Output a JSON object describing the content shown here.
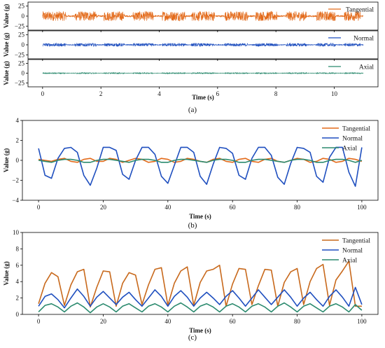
{
  "chart_data": [
    {
      "id": "a",
      "type": "line",
      "caption": "(a)",
      "xlabel": "Time (s)",
      "xlim": [
        -0.5,
        11.5
      ],
      "xticks": [
        0,
        2,
        4,
        6,
        8,
        10
      ],
      "subplots": [
        {
          "series_name": "Tangential",
          "ylabel": "Value (g)",
          "ylim": [
            -35,
            35
          ],
          "yticks": [
            -25,
            0,
            25
          ],
          "color": "#e36a1a",
          "bursts": [
            [
              0,
              0.8
            ],
            [
              1.1,
              1.85
            ],
            [
              2.1,
              2.8
            ],
            [
              3.1,
              3.8
            ],
            [
              4.1,
              4.9
            ],
            [
              5.1,
              5.9
            ],
            [
              6.25,
              7.05
            ],
            [
              7.3,
              8.05
            ],
            [
              8.35,
              9.05
            ],
            [
              9.4,
              10.05
            ],
            [
              10.35,
              10.9
            ]
          ],
          "burst_amplitude": 12,
          "quiet_amplitude": 2
        },
        {
          "series_name": "Normal",
          "ylabel": "Value (g)",
          "ylim": [
            -35,
            35
          ],
          "yticks": [
            -25,
            0,
            25
          ],
          "color": "#1f4fbf",
          "bursts": [
            [
              0,
              0.8
            ],
            [
              1.1,
              1.85
            ],
            [
              2.1,
              2.8
            ],
            [
              3.1,
              3.8
            ],
            [
              4.1,
              4.9
            ],
            [
              5.1,
              5.9
            ],
            [
              6.25,
              7.05
            ],
            [
              7.3,
              8.05
            ],
            [
              8.35,
              9.05
            ],
            [
              9.4,
              10.05
            ],
            [
              10.35,
              10.9
            ]
          ],
          "burst_amplitude": 4,
          "quiet_amplitude": 1
        },
        {
          "series_name": "Axial",
          "ylabel": "Value (g)",
          "ylim": [
            -35,
            35
          ],
          "yticks": [
            -25,
            0,
            25
          ],
          "color": "#2b8a6e",
          "bursts": [
            [
              0,
              0.8
            ],
            [
              1.1,
              1.85
            ],
            [
              2.1,
              2.8
            ],
            [
              3.1,
              3.8
            ],
            [
              4.1,
              4.9
            ],
            [
              5.1,
              5.9
            ],
            [
              6.25,
              7.05
            ],
            [
              7.3,
              8.05
            ],
            [
              8.35,
              9.05
            ],
            [
              9.4,
              10.05
            ],
            [
              10.35,
              10.9
            ]
          ],
          "burst_amplitude": 1.5,
          "quiet_amplitude": 0.6
        }
      ]
    },
    {
      "id": "b",
      "type": "line",
      "caption": "(b)",
      "xlabel": "Time (s)",
      "ylabel": "Value (g)",
      "xlim": [
        -5,
        105
      ],
      "ylim": [
        -4,
        4
      ],
      "xticks": [
        0,
        20,
        40,
        60,
        80,
        100
      ],
      "yticks": [
        -4,
        -2,
        0,
        2,
        4
      ],
      "legend_position": "top-right",
      "x": [
        0,
        2,
        4,
        6,
        8,
        10,
        12,
        14,
        16,
        18,
        20,
        22,
        24,
        26,
        28,
        30,
        32,
        34,
        36,
        38,
        40,
        42,
        44,
        46,
        48,
        50,
        52,
        54,
        56,
        58,
        60,
        62,
        64,
        66,
        68,
        70,
        72,
        74,
        76,
        78,
        80,
        82,
        84,
        86,
        88,
        90,
        92,
        94,
        96,
        98,
        100
      ],
      "series": [
        {
          "name": "Tangential",
          "color": "#e36a1a",
          "values": [
            0.1,
            0.0,
            -0.1,
            0.1,
            0.2,
            -0.1,
            -0.2,
            0.1,
            0.2,
            -0.1,
            -0.1,
            0.2,
            0.1,
            -0.2,
            0.0,
            0.2,
            0.1,
            -0.2,
            -0.1,
            0.2,
            0.1,
            -0.2,
            -0.1,
            0.2,
            0.1,
            -0.1,
            -0.2,
            0.1,
            0.2,
            -0.1,
            -0.2,
            0.1,
            0.2,
            -0.1,
            -0.2,
            0.1,
            0.2,
            -0.1,
            -0.2,
            0.0,
            0.2,
            0.1,
            -0.2,
            -0.1,
            0.2,
            0.1,
            -0.2,
            -0.1,
            0.2,
            0.1,
            -0.1
          ]
        },
        {
          "name": "Normal",
          "color": "#1f4fbf",
          "values": [
            1.2,
            -1.5,
            -1.8,
            0.2,
            1.2,
            1.3,
            0.8,
            -1.5,
            -2.5,
            -0.8,
            1.3,
            1.3,
            1.0,
            -1.4,
            -1.9,
            0.0,
            1.3,
            1.3,
            0.6,
            -1.6,
            -2.3,
            -0.5,
            1.3,
            1.3,
            0.8,
            -1.6,
            -2.4,
            -0.4,
            1.3,
            1.2,
            0.7,
            -1.5,
            -1.9,
            0.2,
            1.3,
            1.3,
            0.5,
            -1.7,
            -2.4,
            -0.3,
            1.3,
            1.2,
            0.8,
            -1.6,
            -2.2,
            0.3,
            1.3,
            1.3,
            -1.2,
            -2.6,
            1.3
          ]
        },
        {
          "name": "Axial",
          "color": "#2b8a6e",
          "values": [
            0.0,
            -0.1,
            -0.2,
            0.0,
            0.1,
            0.1,
            0.0,
            -0.2,
            -0.2,
            0.0,
            0.1,
            0.1,
            0.0,
            -0.1,
            -0.2,
            0.0,
            0.1,
            0.1,
            0.0,
            -0.2,
            -0.2,
            0.0,
            0.1,
            0.1,
            0.0,
            -0.1,
            -0.2,
            0.0,
            0.1,
            0.1,
            0.0,
            -0.2,
            -0.2,
            0.0,
            0.1,
            0.1,
            0.0,
            -0.1,
            -0.2,
            0.0,
            0.1,
            0.1,
            0.0,
            -0.2,
            -0.2,
            0.0,
            0.1,
            0.1,
            0.0,
            -0.2,
            0.0
          ]
        }
      ]
    },
    {
      "id": "c",
      "type": "line",
      "caption": "(c)",
      "xlabel": "Time (s)",
      "ylabel": "Value (g)",
      "xlim": [
        -5,
        105
      ],
      "ylim": [
        0,
        10
      ],
      "xticks": [
        0,
        20,
        40,
        60,
        80,
        100
      ],
      "yticks": [
        0,
        2,
        4,
        6,
        8,
        10
      ],
      "legend_position": "top-right",
      "x": [
        0,
        2,
        4,
        6,
        8,
        10,
        12,
        14,
        16,
        18,
        20,
        22,
        24,
        26,
        28,
        30,
        32,
        34,
        36,
        38,
        40,
        42,
        44,
        46,
        48,
        50,
        52,
        54,
        56,
        58,
        60,
        62,
        64,
        66,
        68,
        70,
        72,
        74,
        76,
        78,
        80,
        82,
        84,
        86,
        88,
        90,
        92,
        94,
        96,
        98,
        100
      ],
      "series": [
        {
          "name": "Tangential",
          "color": "#c8691c",
          "values": [
            1.3,
            3.8,
            5.1,
            4.6,
            1.1,
            3.6,
            5.2,
            5.5,
            0.9,
            3.3,
            5.3,
            5.2,
            1.0,
            3.8,
            5.1,
            4.8,
            1.2,
            3.6,
            5.5,
            5.7,
            1.1,
            3.8,
            5.3,
            5.8,
            1.1,
            3.9,
            5.3,
            5.5,
            6.0,
            1.0,
            3.7,
            5.6,
            5.5,
            1.2,
            3.5,
            5.5,
            5.4,
            1.0,
            3.9,
            5.2,
            5.6,
            1.2,
            4.0,
            5.6,
            6.1,
            1.1,
            4.2,
            5.3,
            6.5,
            1.0,
            1.0
          ]
        },
        {
          "name": "Normal",
          "color": "#1f4fbf",
          "values": [
            1.0,
            2.2,
            2.5,
            1.8,
            0.8,
            2.0,
            3.1,
            2.2,
            1.0,
            2.1,
            2.8,
            2.0,
            1.2,
            2.1,
            2.7,
            1.8,
            1.0,
            2.0,
            3.0,
            2.2,
            1.0,
            2.2,
            2.9,
            2.1,
            1.0,
            2.0,
            2.7,
            2.0,
            1.2,
            2.2,
            2.9,
            2.0,
            1.0,
            2.0,
            3.0,
            2.1,
            1.2,
            2.1,
            3.0,
            2.1,
            1.0,
            2.0,
            2.7,
            1.8,
            1.0,
            2.2,
            3.0,
            2.1,
            1.0,
            3.3,
            1.2
          ]
        },
        {
          "name": "Axial",
          "color": "#2b8a6e",
          "values": [
            0.3,
            1.1,
            1.3,
            0.9,
            0.3,
            1.0,
            1.4,
            0.9,
            0.2,
            0.9,
            1.3,
            0.9,
            0.3,
            1.0,
            1.3,
            0.8,
            0.3,
            1.0,
            1.3,
            0.9,
            0.3,
            1.0,
            1.4,
            0.9,
            0.3,
            1.0,
            1.3,
            0.9,
            0.3,
            1.0,
            1.3,
            0.9,
            0.3,
            1.0,
            1.3,
            0.9,
            0.3,
            1.0,
            1.4,
            0.9,
            0.3,
            1.0,
            1.3,
            0.8,
            0.3,
            1.0,
            1.3,
            0.9,
            0.3,
            1.2,
            0.5
          ]
        }
      ]
    }
  ]
}
